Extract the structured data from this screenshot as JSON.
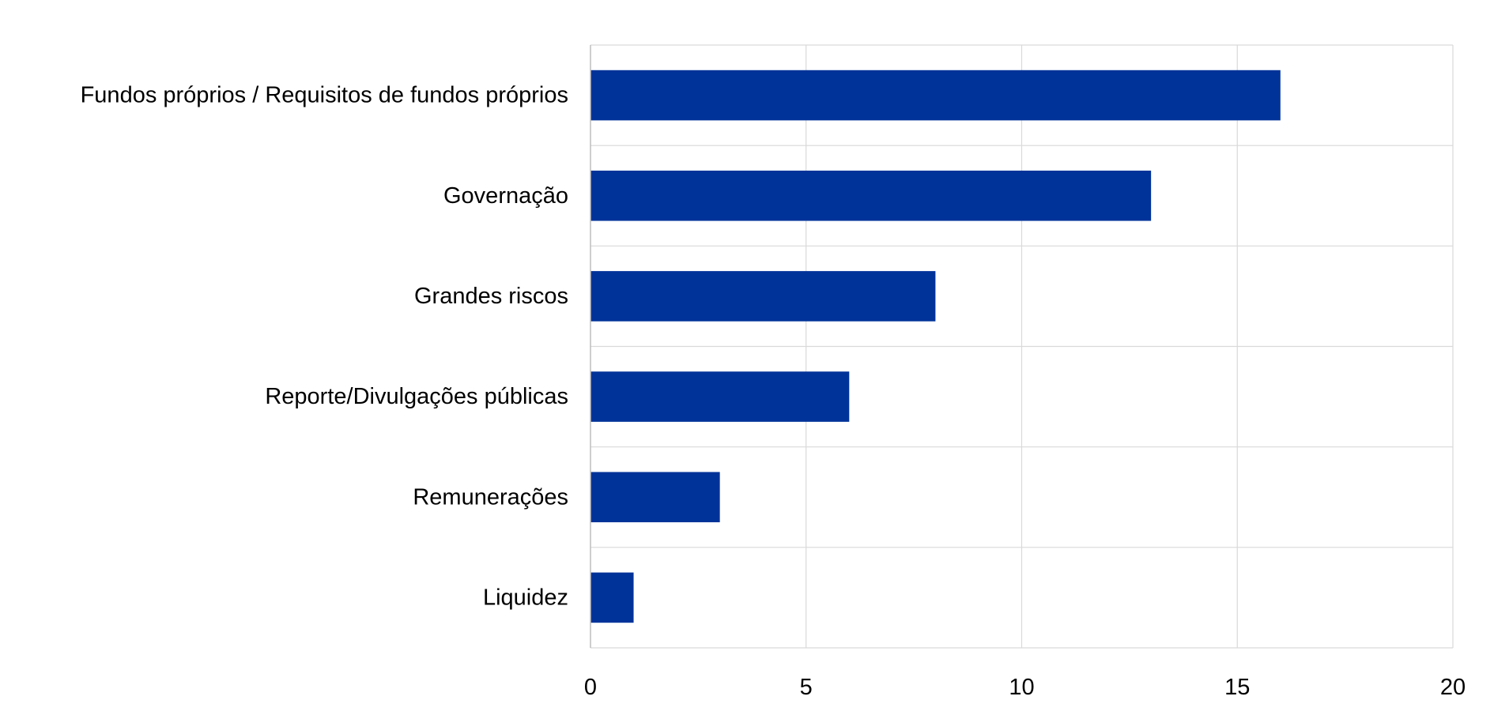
{
  "chart_data": {
    "type": "bar",
    "orientation": "horizontal",
    "title": "",
    "xlabel": "",
    "ylabel": "",
    "categories": [
      "Fundos próprios / Requisitos de fundos próprios",
      "Governação",
      "Grandes riscos",
      "Reporte/Divulgações públicas",
      "Remunerações",
      "Liquidez"
    ],
    "values": [
      16,
      13,
      8,
      6,
      3,
      1
    ],
    "xlim": [
      0,
      20
    ],
    "x_ticks": [
      0,
      5,
      10,
      15,
      20
    ],
    "grid": true,
    "legend": "none",
    "bar_color": "#003399",
    "grid_color": "#d9d9d9"
  }
}
